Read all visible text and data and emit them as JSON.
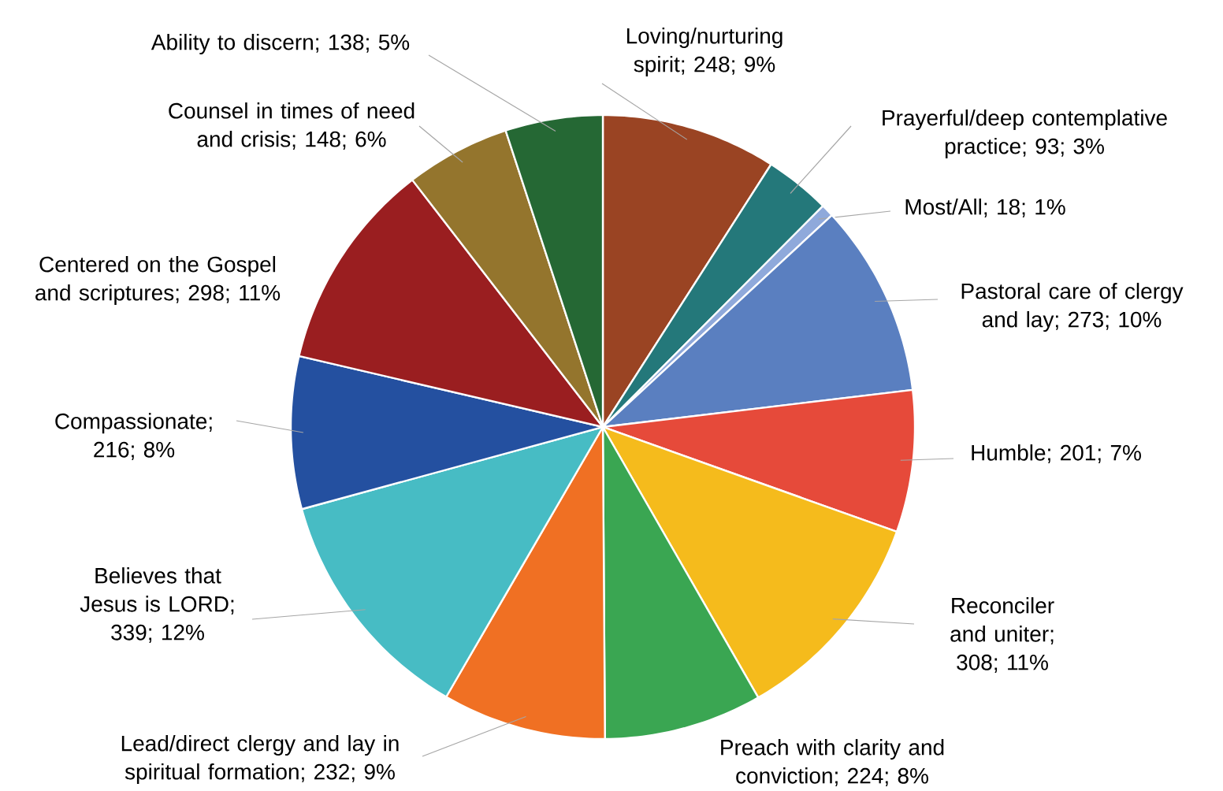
{
  "chart_data": {
    "type": "pie",
    "categories": [
      "Loving/nurturing spirit; 248; 9%",
      "Prayerful/deep contemplative practice; 93; 3%",
      "Most/All; 18; 1%",
      "Pastoral care of clergy and lay; 273; 10%",
      "Humble; 201; 7%",
      "Reconciler and uniter; 308; 11%",
      "Preach with clarity and conviction; 224; 8%",
      "Lead/direct clergy and lay in spiritual formation; 232; 9%",
      "Believes that Jesus is LORD; 339; 12%",
      "Compassionate; 216; 8%",
      "Centered on the Gospel and scriptures; 298; 11%",
      "Counsel in times of need and crisis; 148; 6%",
      "Ability to discern; 138; 5%"
    ],
    "values": [
      248,
      93,
      18,
      273,
      201,
      308,
      224,
      232,
      339,
      216,
      298,
      148,
      138
    ],
    "colors": [
      "#9a4423",
      "#24787a",
      "#8fa9db",
      "#5a7fc0",
      "#e64a3a",
      "#f5bb1c",
      "#3aa652",
      "#f07023",
      "#47bcc4",
      "#2450a0",
      "#9a1e20",
      "#94752d",
      "#256834"
    ]
  }
}
